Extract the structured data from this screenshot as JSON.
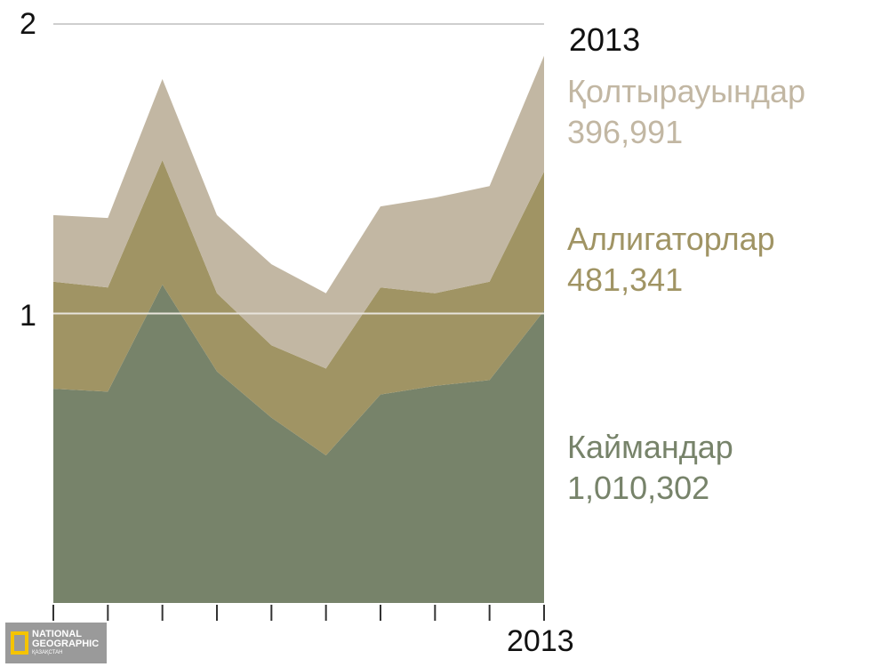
{
  "chart_data": {
    "type": "area",
    "stacked": true,
    "x": [
      "",
      "",
      "",
      "",
      "",
      "",
      "",
      "",
      "",
      "2013"
    ],
    "ylim": [
      0,
      2
    ],
    "yticks": [
      "1",
      "2"
    ],
    "xtick_labels": [
      "2013"
    ],
    "grid": true,
    "legend_year": "2013",
    "series": [
      {
        "name": "Кайм­андар",
        "label": "Каймандар",
        "value_text": "1,010,302",
        "color": "#77836a",
        "values": [
          0.74,
          0.73,
          1.1,
          0.8,
          0.64,
          0.51,
          0.72,
          0.75,
          0.77,
          1.01
        ]
      },
      {
        "name": "Аллигаторлар",
        "label": "Аллигаторлар",
        "value_text": "481,341",
        "color": "#a09464",
        "values": [
          0.37,
          0.36,
          0.43,
          0.27,
          0.25,
          0.3,
          0.37,
          0.32,
          0.34,
          0.48
        ]
      },
      {
        "name": "Қолтырауындар",
        "label": "Қолтырауындар",
        "value_text": "396,991",
        "color": "#c2b7a3",
        "values": [
          0.23,
          0.24,
          0.28,
          0.27,
          0.28,
          0.26,
          0.28,
          0.33,
          0.33,
          0.4
        ]
      }
    ]
  },
  "logo": {
    "line1": "NATIONAL",
    "line2": "GEOGRAPHIC",
    "line3": "ҚАЗАҚСТАН"
  }
}
